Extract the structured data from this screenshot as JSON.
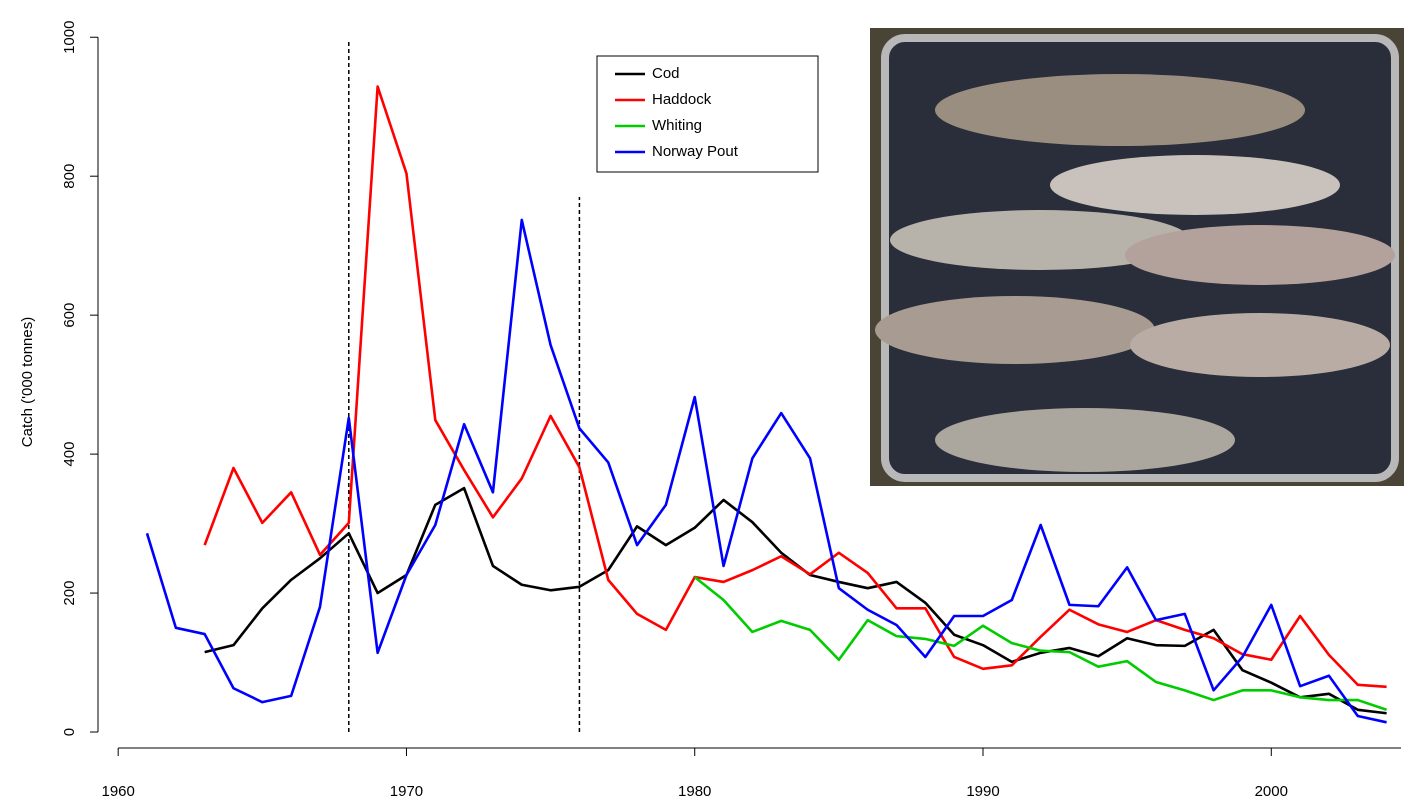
{
  "chart_data": {
    "type": "line",
    "y_label": "Catch ('000 tonnes)",
    "x": [
      1961,
      1962,
      1963,
      1964,
      1965,
      1966,
      1967,
      1968,
      1969,
      1970,
      1971,
      1972,
      1973,
      1974,
      1975,
      1976,
      1977,
      1978,
      1979,
      1980,
      1981,
      1982,
      1983,
      1984,
      1985,
      1986,
      1987,
      1988,
      1989,
      1990,
      1991,
      1992,
      1993,
      1994,
      1995,
      1996,
      1997,
      1998,
      1999,
      2000,
      2001,
      2002,
      2003,
      2004
    ],
    "series": [
      {
        "name": "Cod",
        "color": "#000000",
        "values": [
          null,
          null,
          115,
          125,
          178,
          219,
          250,
          286,
          200,
          226,
          327,
          351,
          239,
          212,
          204,
          209,
          233,
          296,
          269,
          294,
          334,
          302,
          258,
          226,
          216,
          207,
          216,
          186,
          140,
          125,
          101,
          114,
          121,
          109,
          135,
          125,
          124,
          147,
          89,
          71,
          50,
          55,
          32,
          27
        ]
      },
      {
        "name": "Haddock",
        "color": "#ff0000",
        "values": [
          null,
          null,
          269,
          380,
          301,
          345,
          255,
          301,
          929,
          804,
          449,
          377,
          309,
          365,
          455,
          381,
          219,
          170,
          147,
          223,
          216,
          233,
          253,
          227,
          258,
          229,
          178,
          178,
          108,
          91,
          96,
          137,
          176,
          155,
          144,
          161,
          147,
          135,
          112,
          104,
          167,
          111,
          68,
          65
        ]
      },
      {
        "name": "Whiting",
        "color": "#00cc00",
        "values": [
          null,
          null,
          null,
          null,
          null,
          null,
          null,
          null,
          null,
          null,
          null,
          null,
          null,
          null,
          null,
          null,
          null,
          null,
          null,
          223,
          190,
          144,
          160,
          147,
          104,
          161,
          138,
          134,
          124,
          153,
          128,
          117,
          115,
          94,
          102,
          72,
          60,
          46,
          60,
          60,
          50,
          46,
          46,
          32
        ]
      },
      {
        "name": "Norway Pout",
        "color": "#0000ff",
        "values": [
          286,
          150,
          141,
          63,
          43,
          52,
          180,
          452,
          114,
          226,
          298,
          443,
          345,
          737,
          557,
          437,
          388,
          269,
          327,
          482,
          239,
          394,
          459,
          394,
          207,
          176,
          154,
          108,
          167,
          167,
          190,
          298,
          183,
          181,
          237,
          161,
          170,
          60,
          108,
          183,
          66,
          81,
          23,
          14
        ]
      }
    ],
    "vlines": [
      {
        "x": 1968,
        "top": 995
      },
      {
        "x": 1976,
        "top": 770
      }
    ],
    "xlim": [
      1959.3,
      2004.5
    ],
    "xticks": [
      1960,
      1970,
      1980,
      1990,
      2000
    ],
    "ylim": [
      -23,
      1032
    ],
    "yticks": [
      0,
      200,
      400,
      600,
      800,
      1000
    ],
    "legend": "top"
  }
}
